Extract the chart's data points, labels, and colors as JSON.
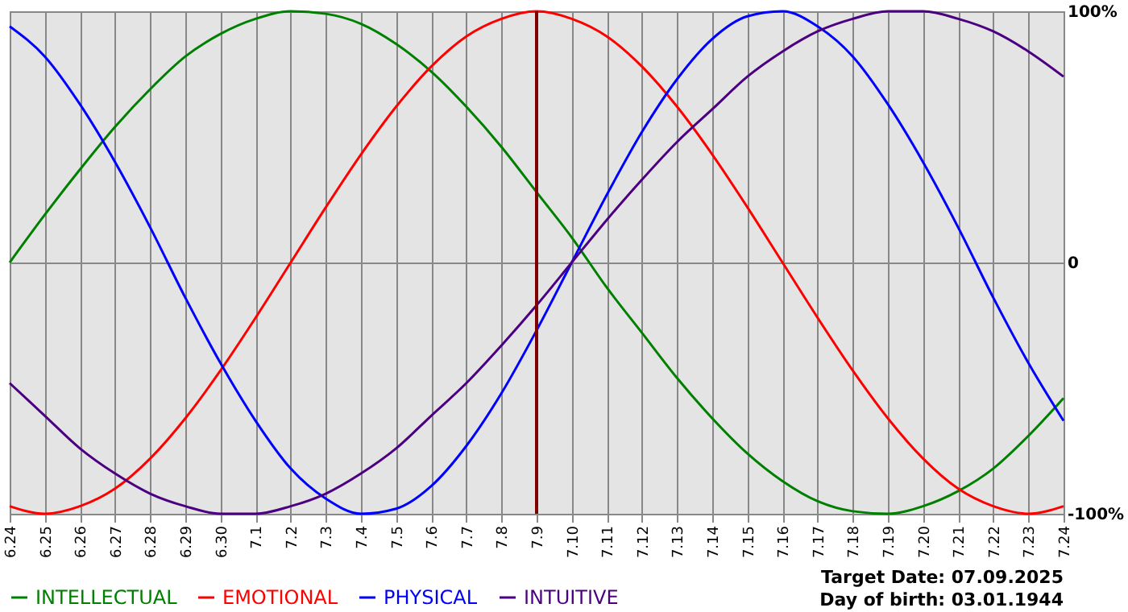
{
  "chart_data": {
    "type": "line",
    "categories": [
      "6.24",
      "6.25",
      "6.26",
      "6.27",
      "6.28",
      "6.29",
      "6.30",
      "7.1",
      "7.2",
      "7.3",
      "7.4",
      "7.5",
      "7.6",
      "7.7",
      "7.8",
      "7.9",
      "7.10",
      "7.11",
      "7.12",
      "7.13",
      "7.14",
      "7.15",
      "7.16",
      "7.17",
      "7.18",
      "7.19",
      "7.20",
      "7.21",
      "7.22",
      "7.23",
      "7.24"
    ],
    "series": [
      {
        "name": "INTELLECTUAL",
        "color": "#008000",
        "values": [
          0,
          19,
          37,
          54,
          69,
          82,
          91,
          97,
          100,
          99,
          95,
          87,
          76,
          62,
          46,
          28,
          10,
          -10,
          -28,
          -46,
          -62,
          -76,
          -87,
          -95,
          -99,
          -100,
          -97,
          -91,
          -82,
          -69,
          -54
        ]
      },
      {
        "name": "EMOTIONAL",
        "color": "#ff0000",
        "values": [
          -97,
          -100,
          -97,
          -90,
          -78,
          -62,
          -43,
          -22,
          0,
          22,
          43,
          62,
          78,
          90,
          97,
          100,
          97,
          90,
          78,
          62,
          43,
          22,
          0,
          -22,
          -43,
          -62,
          -78,
          -90,
          -97,
          -100,
          -97
        ]
      },
      {
        "name": "PHYSICAL",
        "color": "#0000ff",
        "values": [
          94,
          82,
          63,
          40,
          14,
          -14,
          -40,
          -63,
          -82,
          -94,
          -100,
          -98,
          -89,
          -73,
          -52,
          -27,
          0,
          27,
          52,
          73,
          89,
          98,
          100,
          94,
          82,
          63,
          40,
          14,
          -14,
          -40,
          -63
        ]
      },
      {
        "name": "INTUITIVE",
        "color": "#4b0082",
        "values": [
          -48,
          -61,
          -74,
          -84,
          -92,
          -97,
          -100,
          -100,
          -97,
          -92,
          -84,
          -74,
          -61,
          -48,
          -33,
          -17,
          0,
          17,
          33,
          48,
          61,
          74,
          84,
          92,
          97,
          100,
          100,
          97,
          92,
          84,
          74
        ]
      }
    ],
    "ylim": [
      -100,
      100
    ],
    "yticks": [
      {
        "value": -100,
        "label": "-100%"
      },
      0,
      {
        "value": 100,
        "label": "100%"
      }
    ],
    "grid": true,
    "legend": "bottom left",
    "marker": "none",
    "line_style": "solid",
    "ref_lines": [
      {
        "axis": "x",
        "value": "7.9",
        "color": "#800000"
      }
    ],
    "annotations": [
      "Target Date: 07.09.2025",
      "Day of birth: 03.01.1944"
    ]
  }
}
